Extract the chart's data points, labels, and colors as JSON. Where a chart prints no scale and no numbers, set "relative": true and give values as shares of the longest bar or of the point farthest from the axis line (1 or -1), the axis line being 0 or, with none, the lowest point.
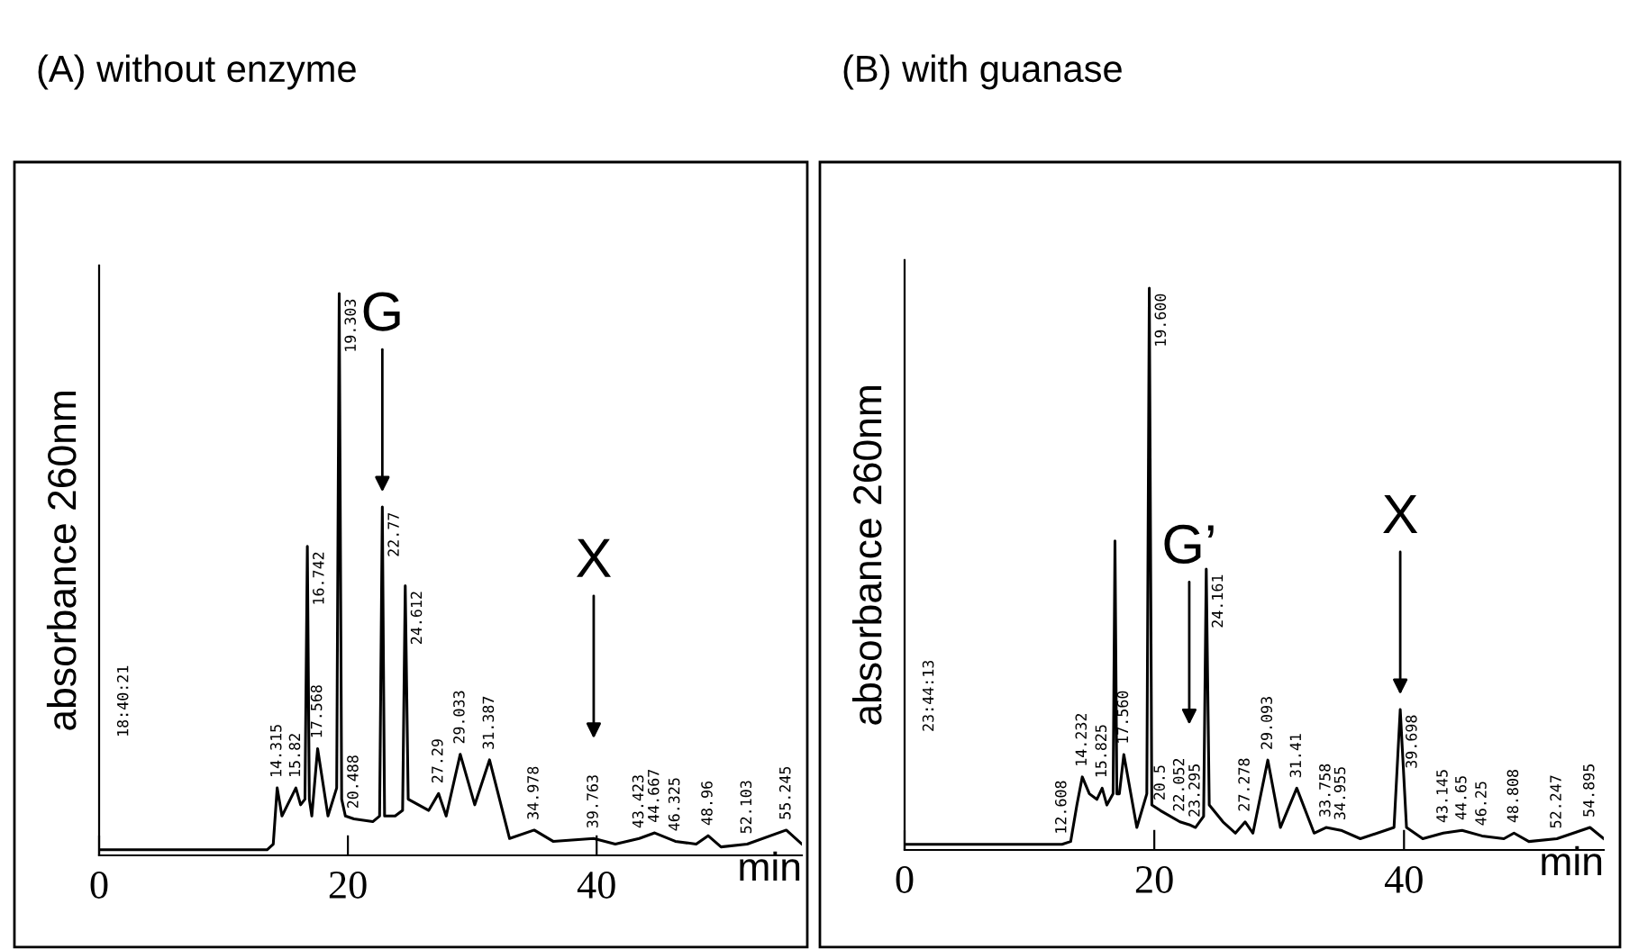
{
  "chart_data": [
    {
      "type": "line",
      "title": "(A) without enzyme",
      "ylabel": "absorbance 260nm",
      "xlabel": "min",
      "relative": true,
      "xlim": [
        0,
        56.5
      ],
      "xticks": [
        0,
        20,
        40
      ],
      "grid": false,
      "annotations": [
        "18:40:21",
        {
          "text": "G",
          "x": 22.77
        },
        {
          "text": "X",
          "x": 39.763
        },
        {
          "text": "14.315",
          "x": 14.315,
          "y": 0.12
        },
        {
          "text": "15.82",
          "x": 15.82,
          "y": 0.12
        },
        {
          "text": "16.742",
          "x": 16.742,
          "y": 0.55
        },
        {
          "text": "17.568",
          "x": 17.568,
          "y": 0.19
        },
        {
          "text": "19.303",
          "x": 19.303,
          "y": 1.0
        },
        {
          "text": "20.488",
          "x": 20.488,
          "y": 0.065
        },
        {
          "text": "22.77",
          "x": 22.77,
          "y": 0.62
        },
        {
          "text": "24.612",
          "x": 24.612,
          "y": 0.48
        },
        {
          "text": "27.29",
          "x": 27.29,
          "y": 0.11
        },
        {
          "text": "29.033",
          "x": 29.033,
          "y": 0.18
        },
        {
          "text": "31.387",
          "x": 31.387,
          "y": 0.17
        },
        {
          "text": "34.978",
          "x": 34.978,
          "y": 0.045
        },
        {
          "text": "39.763",
          "x": 39.763,
          "y": 0.03
        },
        {
          "text": "43.423",
          "x": 43.423,
          "y": 0.03
        },
        {
          "text": "44.667",
          "x": 44.667,
          "y": 0.04
        },
        {
          "text": "46.325",
          "x": 46.325,
          "y": 0.025
        },
        {
          "text": "48.96",
          "x": 48.96,
          "y": 0.035
        },
        {
          "text": "52.103",
          "x": 52.103,
          "y": 0.02
        },
        {
          "text": "55.245",
          "x": 55.245,
          "y": 0.045
        }
      ],
      "series": [
        {
          "color": "#000000",
          "x": [
            0,
            13.5,
            14.0,
            14.315,
            14.7,
            15.82,
            16.2,
            16.55,
            16.742,
            16.9,
            17.1,
            17.568,
            18.4,
            19.1,
            19.303,
            19.5,
            19.8,
            20.488,
            22.0,
            22.55,
            22.77,
            22.95,
            23.8,
            24.4,
            24.612,
            24.85,
            26.5,
            27.29,
            27.9,
            29.033,
            30.2,
            31.387,
            33.0,
            34.978,
            36.5,
            39.763,
            41.5,
            43.423,
            44.667,
            46.325,
            48.0,
            48.96,
            50.0,
            52.103,
            55.245,
            56.5
          ],
          "values": [
            0.01,
            0.01,
            0.02,
            0.12,
            0.07,
            0.12,
            0.09,
            0.1,
            0.55,
            0.1,
            0.07,
            0.19,
            0.07,
            0.12,
            1.0,
            0.1,
            0.07,
            0.065,
            0.06,
            0.07,
            0.62,
            0.07,
            0.07,
            0.08,
            0.48,
            0.1,
            0.08,
            0.11,
            0.07,
            0.18,
            0.09,
            0.17,
            0.03,
            0.045,
            0.025,
            0.03,
            0.02,
            0.03,
            0.04,
            0.025,
            0.02,
            0.035,
            0.015,
            0.02,
            0.045,
            0.02
          ]
        }
      ]
    },
    {
      "type": "line",
      "title": "(B) with guanase",
      "ylabel": "absorbance 260nm",
      "xlabel": "min",
      "relative": true,
      "xlim": [
        0,
        56
      ],
      "xticks": [
        0,
        20,
        40
      ],
      "grid": false,
      "annotations": [
        "23:44:13",
        {
          "text": "G’",
          "x": 22.8
        },
        {
          "text": "X",
          "x": 39.698
        },
        {
          "text": "12.608",
          "x": 12.608,
          "y": 0.01
        },
        {
          "text": "14.232",
          "x": 14.232,
          "y": 0.13
        },
        {
          "text": "15.825",
          "x": 15.825,
          "y": 0.11
        },
        {
          "text": "17.560",
          "x": 17.56,
          "y": 0.17
        },
        {
          "text": "19.600",
          "x": 19.6,
          "y": 1.0
        },
        {
          "text": "20.5",
          "x": 20.5,
          "y": 0.07
        },
        {
          "text": "22.052",
          "x": 22.052,
          "y": 0.05
        },
        {
          "text": "23.295",
          "x": 23.295,
          "y": 0.04
        },
        {
          "text": "24.161",
          "x": 24.161,
          "y": 0.5
        },
        {
          "text": "27.278",
          "x": 27.278,
          "y": 0.05
        },
        {
          "text": "29.093",
          "x": 29.093,
          "y": 0.16
        },
        {
          "text": "31.41",
          "x": 31.41,
          "y": 0.11
        },
        {
          "text": "33.758",
          "x": 33.758,
          "y": 0.04
        },
        {
          "text": "34.955",
          "x": 34.955,
          "y": 0.035
        },
        {
          "text": "39.698",
          "x": 39.698,
          "y": 0.25
        },
        {
          "text": "43.145",
          "x": 43.145,
          "y": 0.03
        },
        {
          "text": "44.65",
          "x": 44.65,
          "y": 0.035
        },
        {
          "text": "46.25",
          "x": 46.25,
          "y": 0.025
        },
        {
          "text": "48.808",
          "x": 48.808,
          "y": 0.03
        },
        {
          "text": "52.247",
          "x": 52.247,
          "y": 0.02
        },
        {
          "text": "54.895",
          "x": 54.895,
          "y": 0.04
        }
      ],
      "series": [
        {
          "color": "#000000",
          "x": [
            0,
            12.608,
            13.3,
            13.8,
            14.232,
            14.8,
            15.4,
            15.825,
            16.2,
            16.7,
            16.85,
            17.0,
            17.2,
            17.56,
            18.6,
            19.4,
            19.6,
            19.8,
            20.5,
            22.052,
            22.8,
            23.295,
            23.95,
            24.161,
            24.4,
            25.5,
            26.5,
            27.278,
            27.9,
            29.093,
            30.1,
            31.41,
            32.8,
            33.758,
            34.955,
            36.5,
            39.2,
            39.698,
            40.2,
            41.5,
            43.145,
            44.65,
            46.25,
            48.0,
            48.808,
            50.0,
            52.247,
            54.895,
            56.0
          ],
          "values": [
            0.01,
            0.01,
            0.015,
            0.08,
            0.13,
            0.1,
            0.09,
            0.11,
            0.08,
            0.1,
            0.55,
            0.1,
            0.1,
            0.17,
            0.04,
            0.1,
            1.0,
            0.08,
            0.07,
            0.05,
            0.045,
            0.04,
            0.06,
            0.5,
            0.08,
            0.05,
            0.03,
            0.05,
            0.03,
            0.16,
            0.04,
            0.11,
            0.03,
            0.04,
            0.035,
            0.02,
            0.04,
            0.25,
            0.04,
            0.02,
            0.03,
            0.035,
            0.025,
            0.02,
            0.03,
            0.015,
            0.02,
            0.04,
            0.02
          ]
        }
      ]
    }
  ]
}
